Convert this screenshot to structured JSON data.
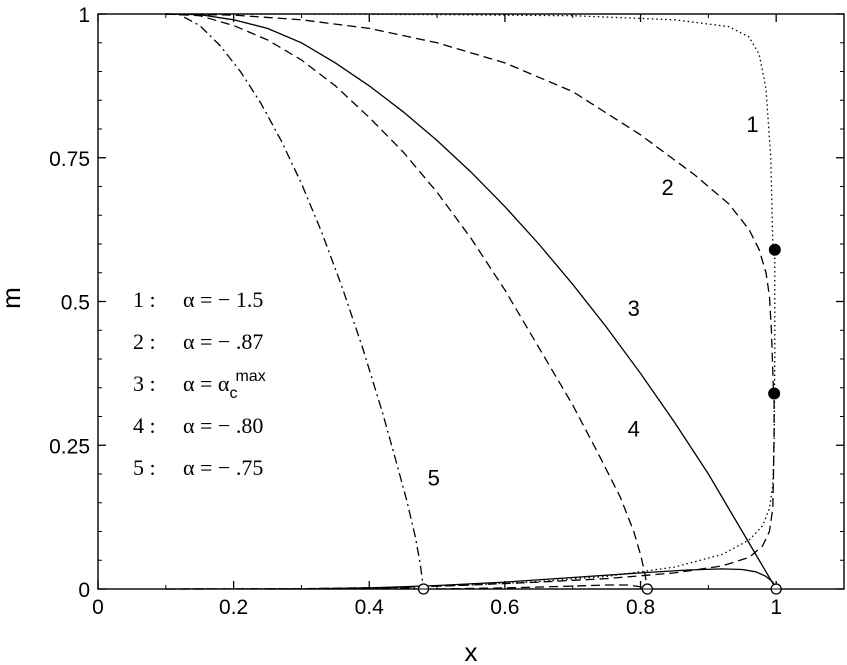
{
  "chart_data": {
    "type": "line",
    "title": "",
    "xlabel": "x",
    "ylabel": "m",
    "xlim": [
      0,
      1.1
    ],
    "ylim": [
      0,
      1
    ],
    "xticks": [
      0,
      0.2,
      0.4,
      0.6,
      0.8,
      1
    ],
    "xtick_labels": [
      "0",
      "0.2",
      "0.4",
      "0.6",
      "0.8",
      "1"
    ],
    "yticks": [
      0,
      0.25,
      0.5,
      0.75,
      1
    ],
    "ytick_labels": [
      "0",
      "0.25",
      "0.5",
      "0.75",
      "1"
    ],
    "grid": false,
    "legend_position": "left-middle",
    "legend": [
      {
        "num": "1 :",
        "alpha": "α = − 1.5"
      },
      {
        "num": "2 :",
        "alpha": "α = − .87"
      },
      {
        "num": "3 :",
        "alpha": "α = α",
        "sub": "c",
        "sup": "max"
      },
      {
        "num": "4 :",
        "alpha": "α = − .80"
      },
      {
        "num": "5 :",
        "alpha": "α = − .75"
      }
    ],
    "series": [
      {
        "name": "1",
        "label_text": "1",
        "style": "dotted",
        "upper": [
          [
            0.1,
            1.0
          ],
          [
            0.3,
            1.0
          ],
          [
            0.5,
            0.999
          ],
          [
            0.7,
            0.997
          ],
          [
            0.85,
            0.99
          ],
          [
            0.93,
            0.978
          ],
          [
            0.96,
            0.96
          ],
          [
            0.975,
            0.93
          ],
          [
            0.985,
            0.87
          ],
          [
            0.992,
            0.75
          ],
          [
            0.995,
            0.6
          ]
        ],
        "lower": [
          [
            0.1,
            0.0
          ],
          [
            0.3,
            0.0005
          ],
          [
            0.45,
            0.003
          ],
          [
            0.55,
            0.007
          ],
          [
            0.65,
            0.013
          ],
          [
            0.75,
            0.022
          ],
          [
            0.85,
            0.038
          ],
          [
            0.92,
            0.06
          ],
          [
            0.96,
            0.085
          ],
          [
            0.98,
            0.11
          ],
          [
            0.99,
            0.14
          ],
          [
            0.995,
            0.18
          ],
          [
            0.997,
            0.25
          ],
          [
            0.998,
            0.4
          ],
          [
            0.998,
            0.55
          ],
          [
            0.998,
            0.59
          ]
        ]
      },
      {
        "name": "2",
        "label_text": "2",
        "style": "dashed",
        "upper": [
          [
            0.1,
            1.0
          ],
          [
            0.2,
            0.998
          ],
          [
            0.3,
            0.99
          ],
          [
            0.4,
            0.975
          ],
          [
            0.5,
            0.95
          ],
          [
            0.6,
            0.915
          ],
          [
            0.7,
            0.865
          ],
          [
            0.8,
            0.79
          ],
          [
            0.88,
            0.72
          ],
          [
            0.93,
            0.67
          ],
          [
            0.96,
            0.625
          ],
          [
            0.975,
            0.59
          ],
          [
            0.985,
            0.55
          ],
          [
            0.99,
            0.51
          ],
          [
            0.993,
            0.45
          ],
          [
            0.995,
            0.38
          ],
          [
            0.996,
            0.34
          ]
        ],
        "lower": [
          [
            0.1,
            0.0
          ],
          [
            0.3,
            0.0005
          ],
          [
            0.45,
            0.003
          ],
          [
            0.55,
            0.007
          ],
          [
            0.65,
            0.012
          ],
          [
            0.75,
            0.018
          ],
          [
            0.85,
            0.028
          ],
          [
            0.92,
            0.04
          ],
          [
            0.96,
            0.055
          ],
          [
            0.98,
            0.075
          ],
          [
            0.99,
            0.1
          ],
          [
            0.995,
            0.14
          ],
          [
            0.996,
            0.2
          ],
          [
            0.997,
            0.28
          ],
          [
            0.997,
            0.34
          ]
        ]
      },
      {
        "name": "3",
        "label_text": "3",
        "style": "solid",
        "upper": [
          [
            0.1,
            1.0
          ],
          [
            0.15,
            0.999
          ],
          [
            0.2,
            0.99
          ],
          [
            0.25,
            0.975
          ],
          [
            0.3,
            0.95
          ],
          [
            0.35,
            0.915
          ],
          [
            0.4,
            0.875
          ],
          [
            0.45,
            0.83
          ],
          [
            0.5,
            0.78
          ],
          [
            0.55,
            0.725
          ],
          [
            0.6,
            0.665
          ],
          [
            0.65,
            0.6
          ],
          [
            0.7,
            0.53
          ],
          [
            0.75,
            0.455
          ],
          [
            0.8,
            0.375
          ],
          [
            0.85,
            0.29
          ],
          [
            0.9,
            0.2
          ],
          [
            0.93,
            0.14
          ],
          [
            0.95,
            0.1
          ],
          [
            0.97,
            0.06
          ],
          [
            0.985,
            0.03
          ],
          [
            0.995,
            0.01
          ],
          [
            1.0,
            0.0
          ]
        ],
        "lower": [
          [
            0.3,
            0.0
          ],
          [
            0.4,
            0.002
          ],
          [
            0.5,
            0.006
          ],
          [
            0.6,
            0.012
          ],
          [
            0.7,
            0.02
          ],
          [
            0.8,
            0.028
          ],
          [
            0.87,
            0.033
          ],
          [
            0.92,
            0.035
          ],
          [
            0.95,
            0.034
          ],
          [
            0.97,
            0.03
          ],
          [
            0.985,
            0.022
          ],
          [
            0.995,
            0.012
          ],
          [
            1.0,
            0.0
          ]
        ]
      },
      {
        "name": "4",
        "label_text": "4",
        "style": "dashed",
        "upper": [
          [
            0.1,
            1.0
          ],
          [
            0.15,
            0.997
          ],
          [
            0.2,
            0.98
          ],
          [
            0.25,
            0.955
          ],
          [
            0.3,
            0.92
          ],
          [
            0.35,
            0.875
          ],
          [
            0.4,
            0.82
          ],
          [
            0.45,
            0.76
          ],
          [
            0.5,
            0.69
          ],
          [
            0.55,
            0.61
          ],
          [
            0.6,
            0.52
          ],
          [
            0.65,
            0.42
          ],
          [
            0.7,
            0.32
          ],
          [
            0.74,
            0.23
          ],
          [
            0.77,
            0.16
          ],
          [
            0.79,
            0.1
          ],
          [
            0.8,
            0.06
          ],
          [
            0.806,
            0.03
          ],
          [
            0.81,
            0.0
          ]
        ],
        "lower": [
          [
            0.5,
            0.0
          ],
          [
            0.6,
            0.002
          ],
          [
            0.7,
            0.005
          ],
          [
            0.75,
            0.007
          ],
          [
            0.78,
            0.007
          ],
          [
            0.8,
            0.004
          ],
          [
            0.81,
            0.0
          ]
        ]
      },
      {
        "name": "5",
        "label_text": "5",
        "style": "dashdot",
        "upper": [
          [
            0.1,
            1.0
          ],
          [
            0.12,
            0.999
          ],
          [
            0.15,
            0.98
          ],
          [
            0.18,
            0.945
          ],
          [
            0.21,
            0.9
          ],
          [
            0.24,
            0.845
          ],
          [
            0.27,
            0.78
          ],
          [
            0.3,
            0.705
          ],
          [
            0.33,
            0.62
          ],
          [
            0.36,
            0.525
          ],
          [
            0.39,
            0.42
          ],
          [
            0.42,
            0.305
          ],
          [
            0.44,
            0.22
          ],
          [
            0.455,
            0.155
          ],
          [
            0.468,
            0.09
          ],
          [
            0.475,
            0.045
          ],
          [
            0.48,
            0.0
          ]
        ],
        "lower": [
          [
            0.25,
            0.0
          ],
          [
            0.35,
            0.0005
          ],
          [
            0.42,
            0.0015
          ],
          [
            0.46,
            0.002
          ],
          [
            0.48,
            0.0
          ]
        ]
      }
    ],
    "label_positions": [
      {
        "series": "1",
        "x": 0.965,
        "y": 0.795
      },
      {
        "series": "2",
        "x": 0.84,
        "y": 0.685
      },
      {
        "series": "3",
        "x": 0.79,
        "y": 0.475
      },
      {
        "series": "4",
        "x": 0.79,
        "y": 0.265
      },
      {
        "series": "5",
        "x": 0.495,
        "y": 0.18
      }
    ],
    "filled_points": [
      [
        0.998,
        0.59
      ],
      [
        0.997,
        0.34
      ]
    ],
    "open_points": [
      [
        0.48,
        0.0
      ],
      [
        0.81,
        0.0
      ],
      [
        1.0,
        0.0
      ]
    ]
  }
}
